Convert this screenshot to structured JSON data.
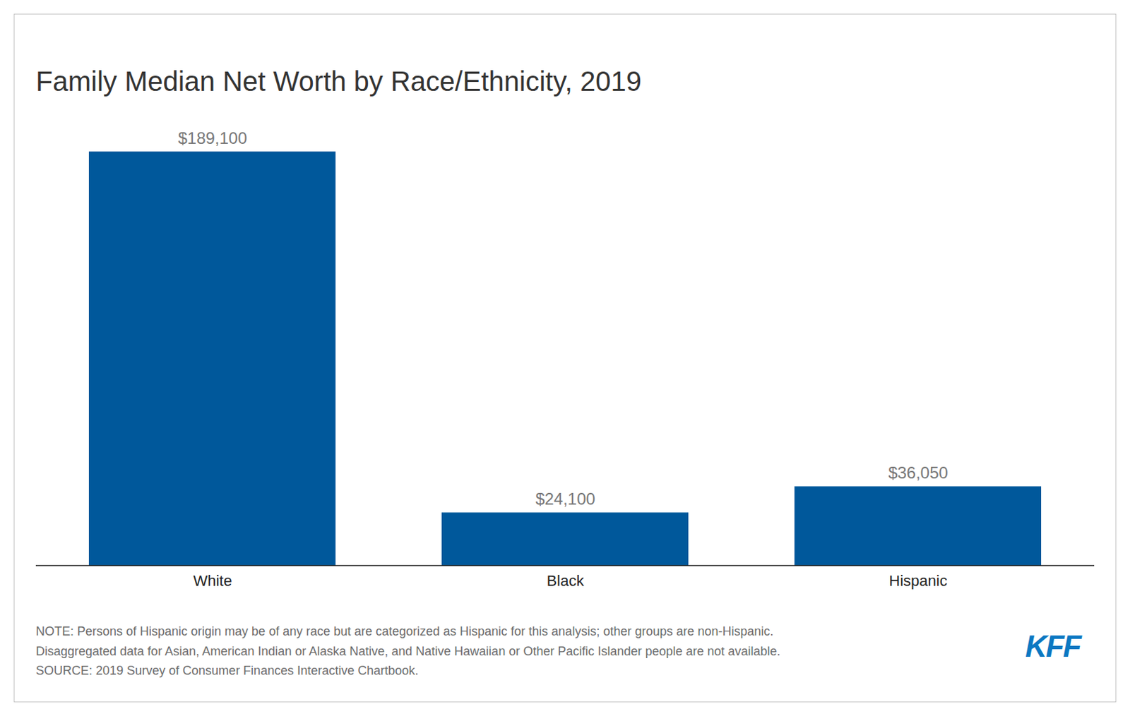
{
  "chart_data": {
    "type": "bar",
    "title": "Family Median Net Worth by Race/Ethnicity, 2019",
    "categories": [
      "White",
      "Black",
      "Hispanic"
    ],
    "values": [
      189100,
      24100,
      36050
    ],
    "value_labels": [
      "$189,100",
      "$24,100",
      "$36,050"
    ],
    "color": "#00589b",
    "ylim": [
      0,
      189100
    ],
    "grid": false,
    "data_labels": true,
    "tick_labels": "x",
    "notes": [
      "NOTE: Persons of Hispanic origin may be of any race but are categorized as Hispanic for this analysis; other groups are non-Hispanic.",
      "Disaggregated data for Asian, American Indian or Alaska Native, and Native Hawaiian or Other Pacific Islander people are not available.",
      "SOURCE: 2019 Survey of Consumer Finances Interactive Chartbook."
    ],
    "logo": "KFF"
  }
}
